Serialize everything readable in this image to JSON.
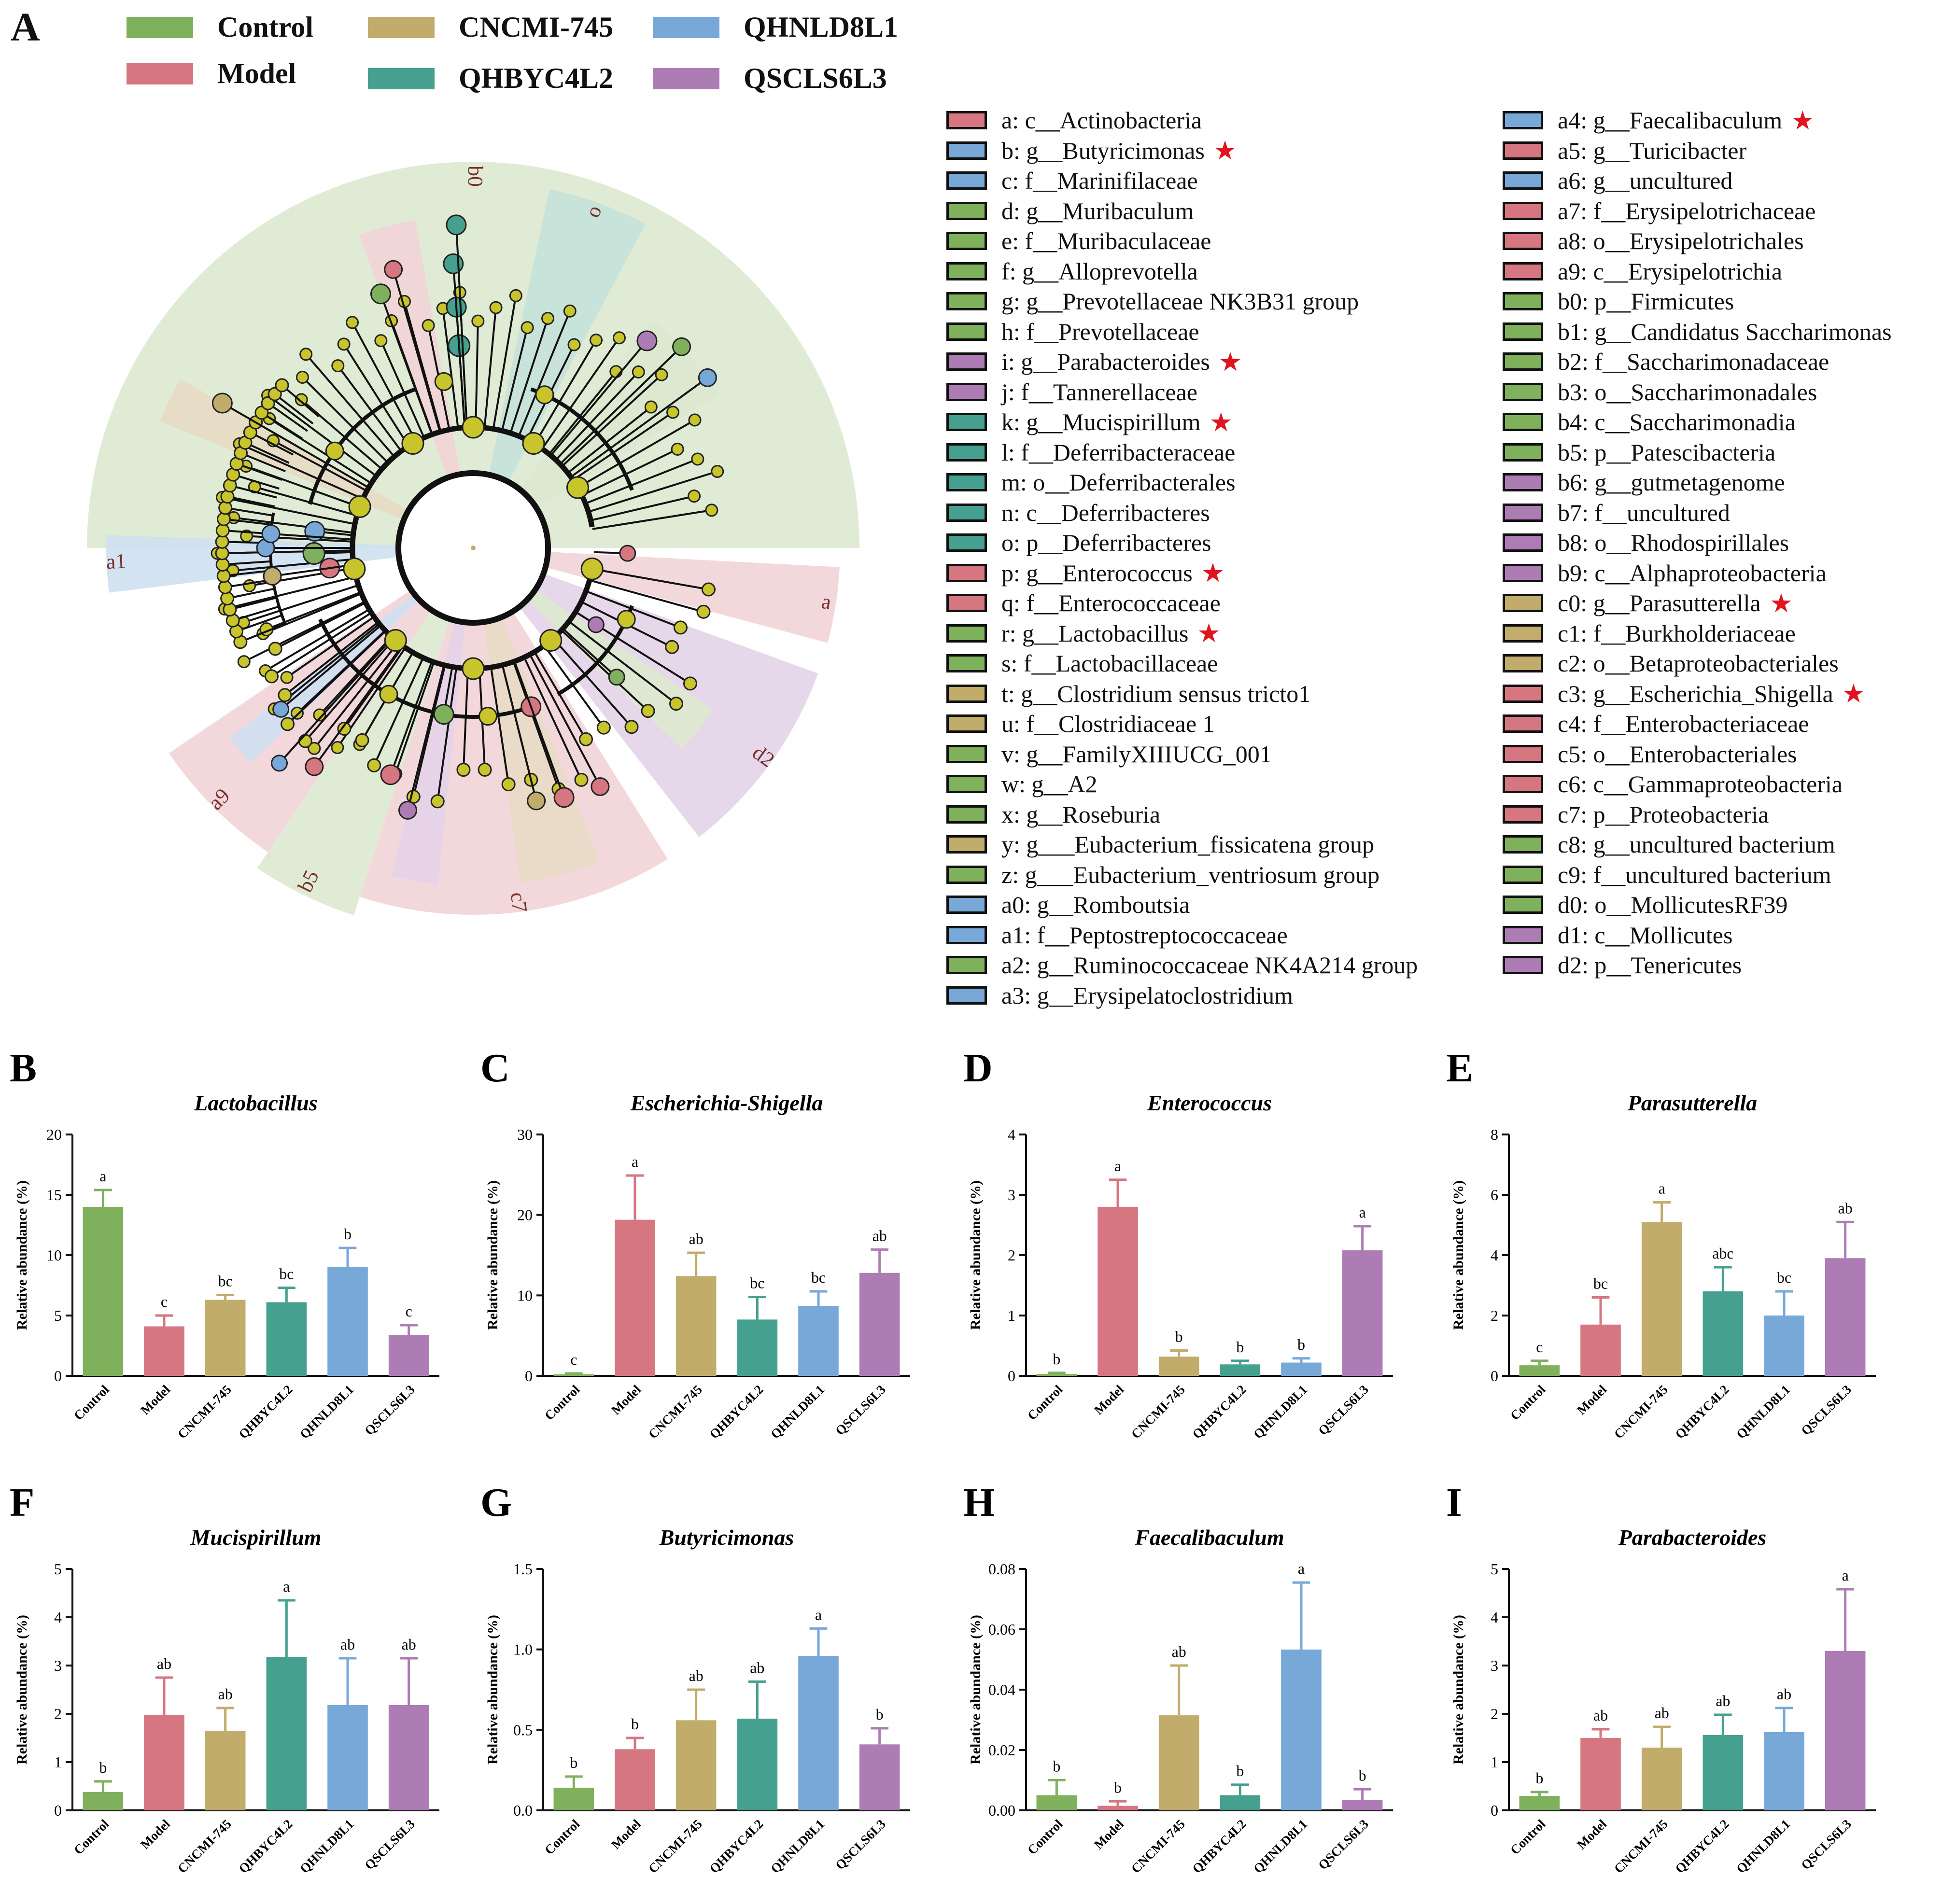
{
  "panel_labels": [
    "A",
    "B",
    "C",
    "D",
    "E",
    "F",
    "G",
    "H",
    "I"
  ],
  "colors": {
    "Control": "#7fb05c",
    "Model": "#d57680",
    "CNCMI-745": "#c2ac6c",
    "QHBYC4L2": "#46a090",
    "QHNLD8L1": "#78a8d8",
    "QSCLS6L3": "#ad7cb5"
  },
  "group_legend": [
    {
      "label": "Control",
      "color": "#7fb05c"
    },
    {
      "label": "Model",
      "color": "#d57680"
    },
    {
      "label": "CNCMI-745",
      "color": "#c2ac6c"
    },
    {
      "label": "QHBYC4L2",
      "color": "#46a090"
    },
    {
      "label": "QHNLD8L1",
      "color": "#78a8d8"
    },
    {
      "label": "QSCLS6L3",
      "color": "#ad7cb5"
    }
  ],
  "cladogram": {
    "star_glyph": "★",
    "taxa": [
      {
        "label": "a: c__Actinobacteria",
        "group": "Model",
        "star": false
      },
      {
        "label": "b: g__Butyricimonas",
        "group": "QHNLD8L1",
        "star": true
      },
      {
        "label": "c: f__Marinifilaceae",
        "group": "QHNLD8L1",
        "star": false
      },
      {
        "label": "d: g__Muribaculum",
        "group": "Control",
        "star": false
      },
      {
        "label": "e: f__Muribaculaceae",
        "group": "Control",
        "star": false
      },
      {
        "label": "f: g__Alloprevotella",
        "group": "Control",
        "star": false
      },
      {
        "label": "g: g__Prevotellaceae NK3B31 group",
        "group": "Control",
        "star": false
      },
      {
        "label": "h: f__Prevotellaceae",
        "group": "Control",
        "star": false
      },
      {
        "label": "i: g__Parabacteroides",
        "group": "QSCLS6L3",
        "star": true
      },
      {
        "label": "j: f__Tannerellaceae",
        "group": "QSCLS6L3",
        "star": false
      },
      {
        "label": "k: g__Mucispirillum",
        "group": "QHBYC4L2",
        "star": true
      },
      {
        "label": "l: f__Deferribacteraceae",
        "group": "QHBYC4L2",
        "star": false
      },
      {
        "label": "m: o__Deferribacterales",
        "group": "QHBYC4L2",
        "star": false
      },
      {
        "label": "n: c__Deferribacteres",
        "group": "QHBYC4L2",
        "star": false
      },
      {
        "label": "o: p__Deferribacteres",
        "group": "QHBYC4L2",
        "star": false
      },
      {
        "label": "p: g__Enterococcus",
        "group": "Model",
        "star": true
      },
      {
        "label": "q: f__Enterococcaceae",
        "group": "Model",
        "star": false
      },
      {
        "label": "r: g__Lactobacillus",
        "group": "Control",
        "star": true
      },
      {
        "label": "s: f__Lactobacillaceae",
        "group": "Control",
        "star": false
      },
      {
        "label": "t: g__Clostridium sensus tricto1",
        "group": "CNCMI-745",
        "star": false
      },
      {
        "label": "u: f__Clostridiaceae 1",
        "group": "CNCMI-745",
        "star": false
      },
      {
        "label": "v: g__FamilyXIIIUCG_001",
        "group": "Control",
        "star": false
      },
      {
        "label": "w: g__A2",
        "group": "Control",
        "star": false
      },
      {
        "label": "x: g__Roseburia",
        "group": "Control",
        "star": false
      },
      {
        "label": "y: g___Eubacterium_fissicatena group",
        "group": "CNCMI-745",
        "star": false
      },
      {
        "label": "z: g___Eubacterium_ventriosum group",
        "group": "Control",
        "star": false
      },
      {
        "label": "a0: g__Romboutsia",
        "group": "QHNLD8L1",
        "star": false
      },
      {
        "label": "a1: f__Peptostreptococcaceae",
        "group": "QHNLD8L1",
        "star": false
      },
      {
        "label": "a2: g__Ruminococcaceae NK4A214 group",
        "group": "Control",
        "star": false
      },
      {
        "label": "a3: g__Erysipelatoclostridium",
        "group": "QHNLD8L1",
        "star": false
      },
      {
        "label": "a4: g__Faecalibaculum",
        "group": "QHNLD8L1",
        "star": true
      },
      {
        "label": "a5: g__Turicibacter",
        "group": "Model",
        "star": false
      },
      {
        "label": "a6: g__uncultured",
        "group": "QHNLD8L1",
        "star": false
      },
      {
        "label": "a7: f__Erysipelotrichaceae",
        "group": "Model",
        "star": false
      },
      {
        "label": "a8: o__Erysipelotrichales",
        "group": "Model",
        "star": false
      },
      {
        "label": "a9: c__Erysipelotrichia",
        "group": "Model",
        "star": false
      },
      {
        "label": "b0: p__Firmicutes",
        "group": "Control",
        "star": false
      },
      {
        "label": "b1: g__Candidatus Saccharimonas",
        "group": "Control",
        "star": false
      },
      {
        "label": "b2: f__Saccharimonadaceae",
        "group": "Control",
        "star": false
      },
      {
        "label": "b3: o__Saccharimonadales",
        "group": "Control",
        "star": false
      },
      {
        "label": "b4: c__Saccharimonadia",
        "group": "Control",
        "star": false
      },
      {
        "label": "b5: p__Patescibacteria",
        "group": "Control",
        "star": false
      },
      {
        "label": "b6: g__gutmetagenome",
        "group": "QSCLS6L3",
        "star": false
      },
      {
        "label": "b7: f__uncultured",
        "group": "QSCLS6L3",
        "star": false
      },
      {
        "label": "b8: o__Rhodospirillales",
        "group": "QSCLS6L3",
        "star": false
      },
      {
        "label": "b9: c__Alphaproteobacteria",
        "group": "QSCLS6L3",
        "star": false
      },
      {
        "label": "c0: g__Parasutterella",
        "group": "CNCMI-745",
        "star": true
      },
      {
        "label": "c1: f__Burkholderiaceae",
        "group": "CNCMI-745",
        "star": false
      },
      {
        "label": "c2: o__Betaproteobacteriales",
        "group": "CNCMI-745",
        "star": false
      },
      {
        "label": "c3: g__Escherichia_Shigella",
        "group": "Model",
        "star": true
      },
      {
        "label": "c4: f__Enterobacteriaceae",
        "group": "Model",
        "star": false
      },
      {
        "label": "c5: o__Enterobacteriales",
        "group": "Model",
        "star": false
      },
      {
        "label": "c6: c__Gammaproteobacteria",
        "group": "Model",
        "star": false
      },
      {
        "label": "c7: p__Proteobacteria",
        "group": "Model",
        "star": false
      },
      {
        "label": "c8: g__uncultured bacterium",
        "group": "Control",
        "star": false
      },
      {
        "label": "c9: f__uncultured bacterium",
        "group": "Control",
        "star": false
      },
      {
        "label": "d0: o__MollicutesRF39",
        "group": "Control",
        "star": false
      },
      {
        "label": "d1: c__Mollicutes",
        "group": "QSCLS6L3",
        "star": false
      },
      {
        "label": "d2: p__Tenericutes",
        "group": "QSCLS6L3",
        "star": false
      }
    ],
    "sectors": [
      {
        "label": "b0",
        "group": "Control",
        "start": -90,
        "end": 90
      },
      {
        "label": "a",
        "group": "Model",
        "start": 93,
        "end": 105
      },
      {
        "label": "d2",
        "group": "QSCLS6L3",
        "start": 110,
        "end": 142
      },
      {
        "label": "c7",
        "group": "Model",
        "start": 148,
        "end": 198
      },
      {
        "label": "b5",
        "group": "Control",
        "start": 198,
        "end": 214
      },
      {
        "label": "a9",
        "group": "Model",
        "start": 214,
        "end": 236
      },
      {
        "label": "a1",
        "group": "QHNLD8L1",
        "start": 263,
        "end": 272
      },
      {
        "label": "o",
        "group": "QHBYC4L2",
        "start": 12,
        "end": 28
      }
    ]
  },
  "chart_data": [
    {
      "panel": "B",
      "type": "bar",
      "title": "Lactobacillus",
      "ylabel": "Relative abundance (%)",
      "ylim": [
        0,
        20
      ],
      "yticks": [
        0,
        5,
        10,
        15,
        20
      ],
      "categories": [
        "Control",
        "Model",
        "CNCMI-745",
        "QHBYC4L2",
        "QHNLD8L1",
        "QSCLS6L3"
      ],
      "values": [
        14,
        4.1,
        6.3,
        6.1,
        9.0,
        3.4
      ],
      "errors": [
        1.4,
        0.9,
        0.4,
        1.2,
        1.6,
        0.8
      ],
      "letters": [
        "a",
        "c",
        "bc",
        "bc",
        "b",
        "c"
      ]
    },
    {
      "panel": "C",
      "type": "bar",
      "title": "Escherichia-Shigella",
      "ylabel": "Relative abundance (%)",
      "ylim": [
        0,
        30
      ],
      "yticks": [
        0,
        10,
        20,
        30
      ],
      "categories": [
        "Control",
        "Model",
        "CNCMI-745",
        "QHBYC4L2",
        "QHNLD8L1",
        "QSCLS6L3"
      ],
      "values": [
        0.2,
        19.4,
        12.4,
        7.0,
        8.7,
        12.8
      ],
      "errors": [
        0.1,
        5.5,
        2.9,
        2.8,
        1.8,
        2.9
      ],
      "letters": [
        "c",
        "a",
        "ab",
        "bc",
        "bc",
        "ab"
      ]
    },
    {
      "panel": "D",
      "type": "bar",
      "title": "Enterococcus",
      "ylabel": "Relative abundance (%)",
      "ylim": [
        0,
        4
      ],
      "yticks": [
        0,
        1,
        2,
        3,
        4
      ],
      "categories": [
        "Control",
        "Model",
        "CNCMI-745",
        "QHBYC4L2",
        "QHNLD8L1",
        "QSCLS6L3"
      ],
      "values": [
        0.03,
        2.8,
        0.32,
        0.19,
        0.22,
        2.08
      ],
      "errors": [
        0.02,
        0.45,
        0.1,
        0.06,
        0.07,
        0.4
      ],
      "letters": [
        "b",
        "a",
        "b",
        "b",
        "b",
        "a"
      ]
    },
    {
      "panel": "E",
      "type": "bar",
      "title": "Parasutterella",
      "ylabel": "Relative abundance (%)",
      "ylim": [
        0,
        8
      ],
      "yticks": [
        0,
        2,
        4,
        6,
        8
      ],
      "categories": [
        "Control",
        "Model",
        "CNCMI-745",
        "QHBYC4L2",
        "QHNLD8L1",
        "QSCLS6L3"
      ],
      "values": [
        0.35,
        1.7,
        5.1,
        2.8,
        2.0,
        3.9
      ],
      "errors": [
        0.15,
        0.9,
        0.65,
        0.8,
        0.8,
        1.2
      ],
      "letters": [
        "c",
        "bc",
        "a",
        "abc",
        "bc",
        "ab"
      ]
    },
    {
      "panel": "F",
      "type": "bar",
      "title": "Mucispirillum",
      "ylabel": "Relative abundance (%)",
      "ylim": [
        0,
        5
      ],
      "yticks": [
        0,
        1,
        2,
        3,
        4,
        5
      ],
      "categories": [
        "Control",
        "Model",
        "CNCMI-745",
        "QHBYC4L2",
        "QHNLD8L1",
        "QSCLS6L3"
      ],
      "values": [
        0.38,
        1.97,
        1.65,
        3.18,
        2.18,
        2.18
      ],
      "errors": [
        0.22,
        0.78,
        0.47,
        1.17,
        0.97,
        0.97
      ],
      "letters": [
        "b",
        "ab",
        "ab",
        "a",
        "ab",
        "ab"
      ]
    },
    {
      "panel": "G",
      "type": "bar",
      "title": "Butyricimonas",
      "ylabel": "Relative abundance (%)",
      "ylim": [
        0,
        1.5
      ],
      "yticks": [
        "0.0",
        "0.5",
        "1.0",
        "1.5"
      ],
      "categories": [
        "Control",
        "Model",
        "CNCMI-745",
        "QHBYC4L2",
        "QHNLD8L1",
        "QSCLS6L3"
      ],
      "values": [
        0.14,
        0.38,
        0.56,
        0.57,
        0.96,
        0.41
      ],
      "errors": [
        0.07,
        0.07,
        0.19,
        0.23,
        0.17,
        0.1
      ],
      "letters": [
        "b",
        "b",
        "ab",
        "ab",
        "a",
        "b"
      ]
    },
    {
      "panel": "H",
      "type": "bar",
      "title": "Faecalibaculum",
      "ylabel": "Relative abundance (%)",
      "ylim": [
        0,
        0.08
      ],
      "yticks": [
        "0.00",
        "0.02",
        "0.04",
        "0.06",
        "0.08"
      ],
      "categories": [
        "Control",
        "Model",
        "CNCMI-745",
        "QHBYC4L2",
        "QHNLD8L1",
        "QSCLS6L3"
      ],
      "values": [
        0.005,
        0.0015,
        0.0315,
        0.005,
        0.0533,
        0.0035
      ],
      "errors": [
        0.005,
        0.0015,
        0.0165,
        0.0035,
        0.0222,
        0.0035
      ],
      "letters": [
        "b",
        "b",
        "ab",
        "b",
        "a",
        "b"
      ]
    },
    {
      "panel": "I",
      "type": "bar",
      "title": "Parabacteroides",
      "ylabel": "Relative abundance (%)",
      "ylim": [
        0,
        5
      ],
      "yticks": [
        0,
        1,
        2,
        3,
        4,
        5
      ],
      "categories": [
        "Control",
        "Model",
        "CNCMI-745",
        "QHBYC4L2",
        "QHNLD8L1",
        "QSCLS6L3"
      ],
      "values": [
        0.3,
        1.5,
        1.3,
        1.56,
        1.62,
        3.3
      ],
      "errors": [
        0.08,
        0.18,
        0.43,
        0.42,
        0.5,
        1.28
      ],
      "letters": [
        "b",
        "ab",
        "ab",
        "ab",
        "ab",
        "a"
      ]
    }
  ]
}
